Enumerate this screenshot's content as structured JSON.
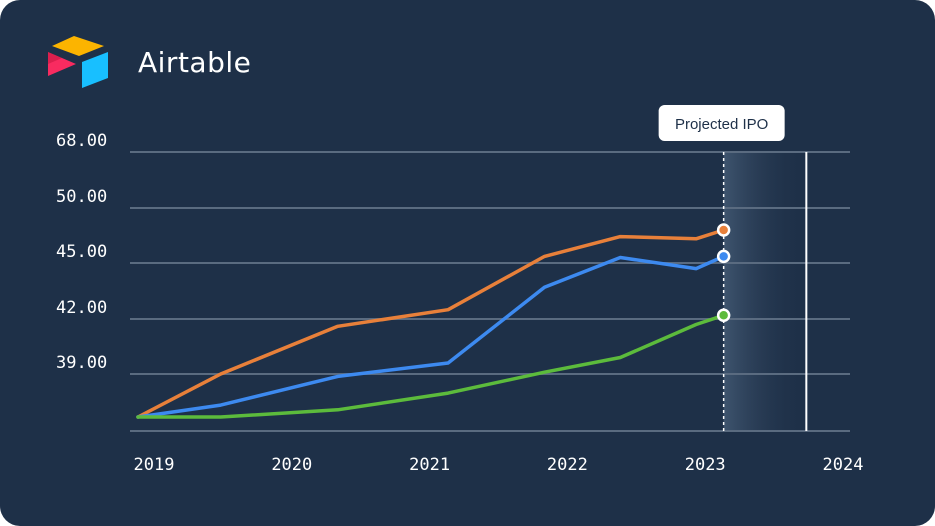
{
  "brand": {
    "name": "Airtable",
    "logo_icon": "airtable-logo-icon",
    "logo_colors": [
      "#fcb400",
      "#18bfff",
      "#f82b60"
    ]
  },
  "colors": {
    "background": "#1e3048",
    "grid": "#5a6b80",
    "text": "#ffffff",
    "marker": "#ffffff"
  },
  "chart_data": {
    "type": "line",
    "title": "",
    "xlabel": "",
    "ylabel": "",
    "x_ticks": [
      "2019",
      "2020",
      "2021",
      "2022",
      "2023",
      "2024"
    ],
    "y_ticks": [
      "39.00",
      "42.00",
      "45.00",
      "50.00",
      "68.00"
    ],
    "x_range": [
      2019.0,
      2024.0
    ],
    "grid": "horizontal",
    "x": [
      2019.0,
      2019.6,
      2020.45,
      2021.25,
      2021.95,
      2022.5,
      2023.05,
      2023.25
    ],
    "series": [
      {
        "color": "#e8803a",
        "values": [
          37.2,
          39.0,
          41.6,
          42.5,
          45.6,
          47.4,
          47.2,
          48.0
        ]
      },
      {
        "color": "#3d8af0",
        "values": [
          37.2,
          37.7,
          38.9,
          39.6,
          43.7,
          45.5,
          44.7,
          45.6
        ]
      },
      {
        "color": "#5cbb3c",
        "values": [
          37.2,
          37.2,
          37.5,
          38.2,
          39.1,
          39.9,
          41.7,
          42.2
        ]
      }
    ],
    "annotation": {
      "label": "Projected IPO",
      "x_start": 2023.25,
      "x_end": 2023.85
    }
  }
}
